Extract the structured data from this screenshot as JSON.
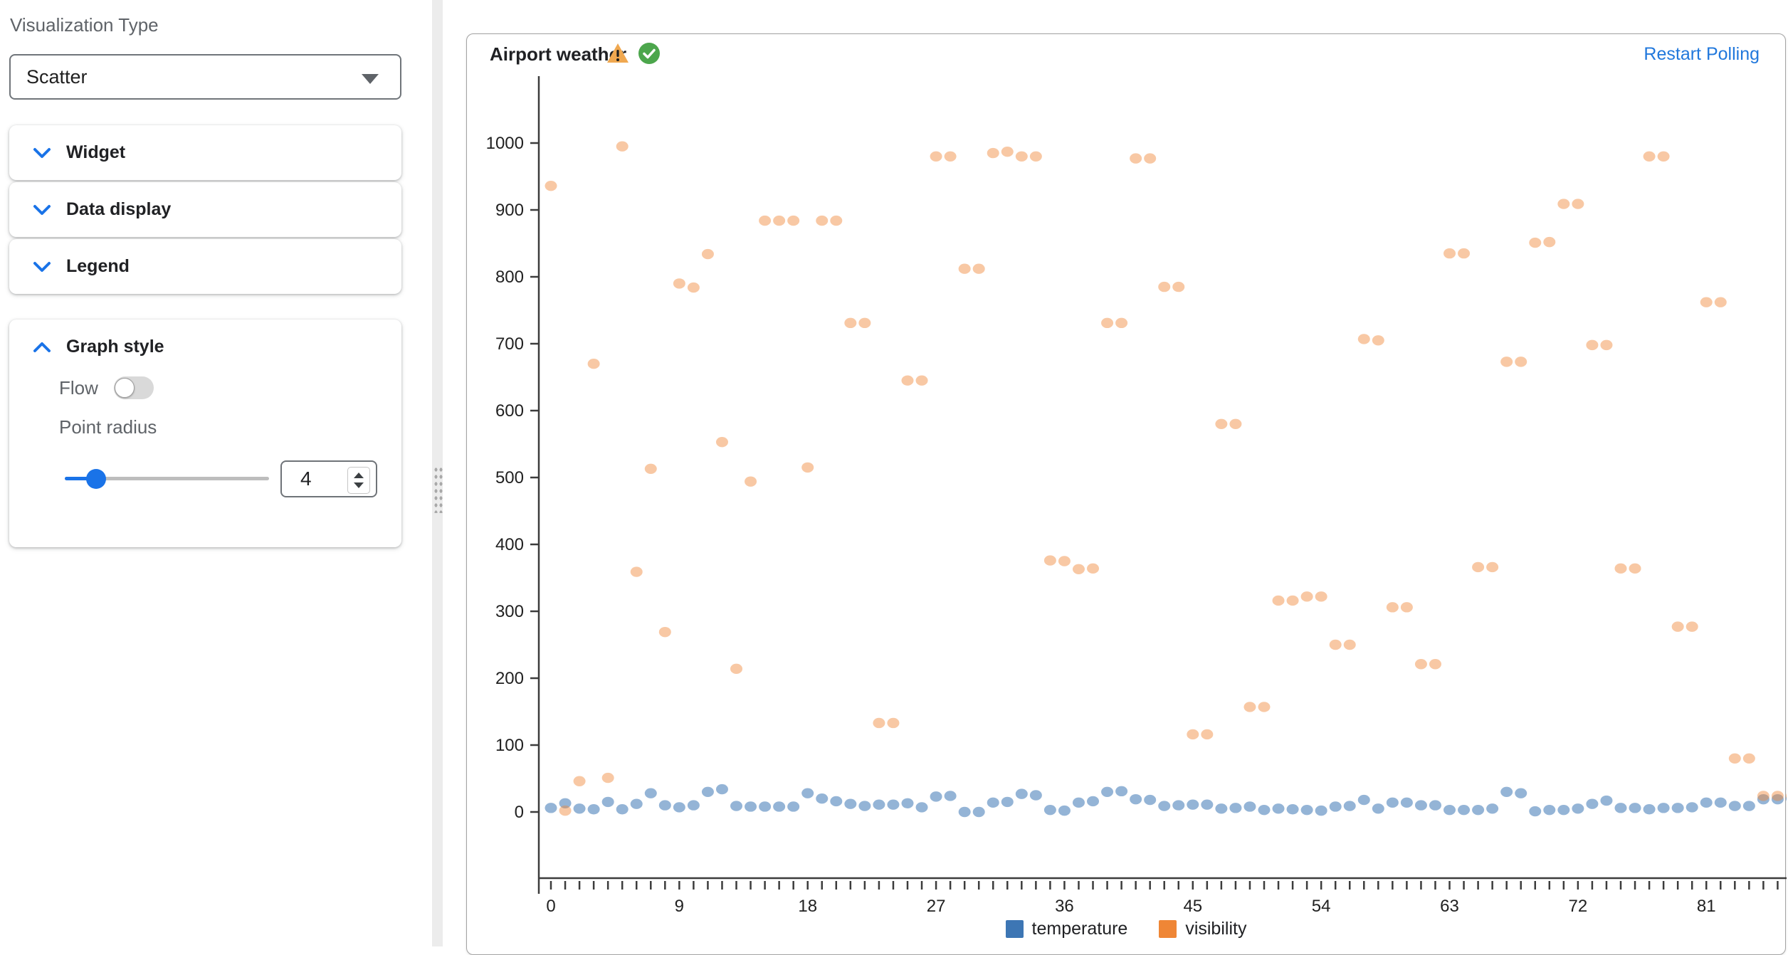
{
  "sidebar": {
    "visualization_type_label": "Visualization Type",
    "visualization_type_value": "Scatter",
    "sections": [
      {
        "label": "Widget",
        "collapsed": true
      },
      {
        "label": "Data display",
        "collapsed": true
      },
      {
        "label": "Legend",
        "collapsed": true
      },
      {
        "label": "Graph style",
        "collapsed": false
      }
    ],
    "graph_style": {
      "flow_label": "Flow",
      "flow_on": false,
      "point_radius_label": "Point radius",
      "point_radius_value": "4"
    }
  },
  "panel": {
    "title": "Airport weather",
    "restart_label": "Restart Polling",
    "status_icons": [
      "warning",
      "ok"
    ]
  },
  "chart_data": {
    "type": "scatter",
    "title": "Airport weather",
    "xlabel": "",
    "ylabel": "",
    "x_start": 0,
    "x_step": 1,
    "n_points": 88,
    "x_labeled_ticks": [
      0,
      9,
      18,
      27,
      36,
      45,
      54,
      63,
      72,
      81
    ],
    "ylim": [
      0,
      1100
    ],
    "y_tick_step": 100,
    "y_tick_max": 1000,
    "grid": false,
    "legend_position": "bottom",
    "series": [
      {
        "name": "temperature",
        "legend_color": "#3d76b4",
        "point_color": "rgba(61,118,180,0.55)",
        "values": [
          6,
          13,
          5,
          4,
          15,
          4,
          12,
          28,
          10,
          7,
          10,
          30,
          34,
          9,
          8,
          8,
          8,
          8,
          28,
          20,
          16,
          12,
          9,
          11,
          11,
          13,
          7,
          23,
          24,
          0,
          0,
          14,
          15,
          27,
          25,
          3,
          2,
          14,
          16,
          30,
          31,
          19,
          18,
          9,
          10,
          11,
          11,
          5,
          6,
          8,
          3,
          5,
          4,
          3,
          2,
          8,
          9,
          18,
          5,
          14,
          14,
          10,
          10,
          3,
          3,
          3,
          5,
          30,
          28,
          1,
          3,
          3,
          5,
          12,
          17,
          6,
          6,
          4,
          6,
          6,
          7,
          14,
          14,
          9,
          9,
          19,
          19,
          20
        ]
      },
      {
        "name": "visibility",
        "legend_color": "#ef8636",
        "point_color": "rgba(239,134,54,0.45)",
        "values": [
          936,
          2,
          46,
          670,
          51,
          995,
          359,
          513,
          269,
          790,
          784,
          834,
          553,
          214,
          494,
          884,
          884,
          884,
          515,
          884,
          884,
          731,
          731,
          133,
          133,
          645,
          645,
          980,
          980,
          812,
          812,
          985,
          987,
          980,
          980,
          376,
          375,
          363,
          364,
          731,
          731,
          977,
          977,
          785,
          785,
          116,
          116,
          580,
          580,
          157,
          157,
          316,
          316,
          322,
          322,
          250,
          250,
          707,
          705,
          306,
          306,
          221,
          221,
          835,
          835,
          366,
          366,
          673,
          673,
          851,
          852,
          909,
          909,
          698,
          698,
          364,
          364,
          980,
          980,
          277,
          277,
          762,
          762,
          80,
          80,
          24,
          24,
          24
        ]
      }
    ]
  }
}
